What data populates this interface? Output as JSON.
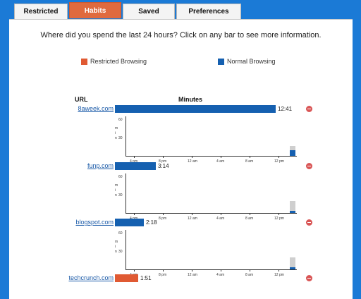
{
  "tabs": [
    {
      "label": "Restricted",
      "active": false
    },
    {
      "label": "Habits",
      "active": true
    },
    {
      "label": "Saved",
      "active": false
    },
    {
      "label": "Preferences",
      "active": false
    }
  ],
  "prompt": "Where did you spend the last 24 hours? Click on any bar to see more information.",
  "legend": [
    {
      "label": "Restricted Browsing",
      "color": "#e05a33"
    },
    {
      "label": "Normal Browsing",
      "color": "#1560b0"
    }
  ],
  "headers": {
    "url": "URL",
    "minutes": "Minutes"
  },
  "rows": [
    {
      "url": "8aweek.com",
      "minutes_label": "12:41",
      "minutes": 761,
      "color": "#1560b0",
      "type": "normal",
      "spark_heights": [
        0.25,
        0.15
      ]
    },
    {
      "url": "funp.com",
      "minutes_label": "3:14",
      "minutes": 194,
      "color": "#1560b0",
      "type": "normal",
      "spark_heights": [
        0.3,
        0.05
      ]
    },
    {
      "url": "blogspot.com",
      "minutes_label": "2:18",
      "minutes": 138,
      "color": "#1560b0",
      "type": "normal",
      "spark_heights": [
        0.3,
        0.05
      ]
    },
    {
      "url": "techcrunch.com",
      "minutes_label": "1:51",
      "minutes": 111,
      "color": "#e05a33",
      "type": "restricted",
      "spark_heights": []
    }
  ],
  "mini_chart": {
    "y_ticks": [
      "60",
      "30"
    ],
    "y_labels": [
      "m",
      "i",
      "n"
    ],
    "x_ticks": [
      "4 pm",
      "8 pm",
      "12 am",
      "4 am",
      "8 am",
      "12 pm"
    ]
  }
}
